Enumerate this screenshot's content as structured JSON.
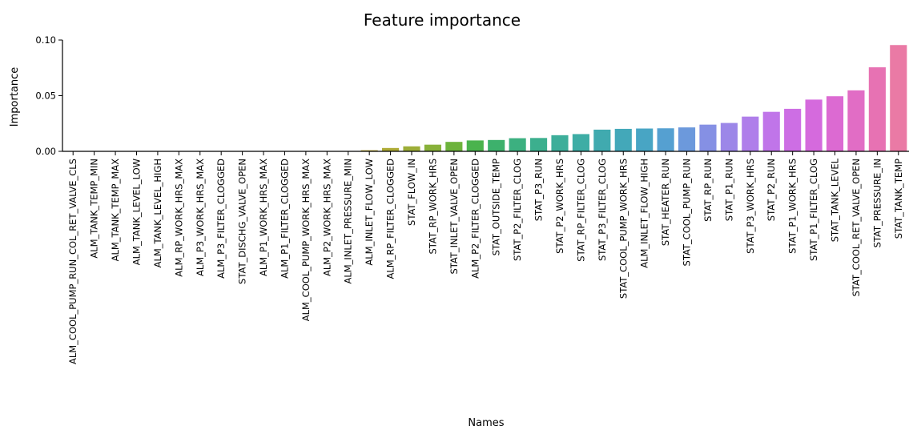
{
  "chart_data": {
    "type": "bar",
    "title": "Feature importance",
    "xlabel": "Names",
    "ylabel": "Importance",
    "ylim": [
      0,
      0.1
    ],
    "yticks": [
      "0.00",
      "0.05",
      "0.10"
    ],
    "ytick_values": [
      0,
      0.05,
      0.1
    ],
    "grid": false,
    "categories": [
      "ALM_COOL_PUMP_RUN_COL_RET_VALVE_CLS",
      "ALM_TANK_TEMP_MIN",
      "ALM_TANK_TEMP_MAX",
      "ALM_TANK_LEVEL_LOW",
      "ALM_TANK_LEVEL_HIGH",
      "ALM_RP_WORK_HRS_MAX",
      "ALM_P3_WORK_HRS_MAX",
      "ALM_P3_FILTER_CLOGGED",
      "STAT_DISCHG_VALVE_OPEN",
      "ALM_P1_WORK_HRS_MAX",
      "ALM_P1_FILTER_CLOGGED",
      "ALM_COOL_PUMP_WORK_HRS_MAX",
      "ALM_P2_WORK_HRS_MAX",
      "ALM_INLET_PRESSURE_MIN",
      "ALM_INLET_FLOW_LOW",
      "ALM_RP_FILTER_CLOGGED",
      "STAT_FLOW_IN",
      "STAT_RP_WORK_HRS",
      "STAT_INLET_VALVE_OPEN",
      "ALM_P2_FILTER_CLOGGED",
      "STAT_OUTSIDE_TEMP",
      "STAT_P2_FILTER_CLOG",
      "STAT_P3_RUN",
      "STAT_P2_WORK_HRS",
      "STAT_RP_FILTER_CLOG",
      "STAT_P3_FILTER_CLOG",
      "STAT_COOL_PUMP_WORK_HRS",
      "ALM_INLET_FLOW_HIGH",
      "STAT_HEATER_RUN",
      "STAT_COOL_PUMP_RUN",
      "STAT_RP_RUN",
      "STAT_P1_RUN",
      "STAT_P3_WORK_HRS",
      "STAT_P2_RUN",
      "STAT_P1_WORK_HRS",
      "STAT_P1_FILTER_CLOG",
      "STAT_TANK_LEVEL",
      "STAT_COOL_RET_VALVE_OPEN",
      "STAT_PRESSURE_IN",
      "STAT_TANK_TEMP"
    ],
    "values": [
      0,
      0,
      0,
      0,
      0,
      0,
      0,
      0,
      0,
      0,
      0,
      0,
      0,
      0,
      0.001,
      0.003,
      0.0045,
      0.006,
      0.0085,
      0.0098,
      0.0102,
      0.0118,
      0.012,
      0.0145,
      0.0155,
      0.0195,
      0.0202,
      0.0205,
      0.0207,
      0.0215,
      0.024,
      0.0255,
      0.0312,
      0.0355,
      0.0382,
      0.0465,
      0.0495,
      0.0548,
      0.0755,
      0.0955
    ],
    "colors": [
      "#f2808b",
      "#f2808b",
      "#f2818a",
      "#f18287",
      "#f08383",
      "#ef857d",
      "#ed8775",
      "#eb896c",
      "#e88d60",
      "#e59154",
      "#e19546",
      "#dc9a37",
      "#d49f30",
      "#c8a431",
      "#bca833",
      "#aeab36",
      "#9dae38",
      "#88b13a",
      "#6db33c",
      "#4ab34d",
      "#3db16c",
      "#3cb080",
      "#3caf8e",
      "#3dae9a",
      "#3eada5",
      "#40aaaf",
      "#43a8b9",
      "#48a5c4",
      "#55a0d1",
      "#6c99dc",
      "#8590e4",
      "#9c87e8",
      "#af7eea",
      "#c075e9",
      "#cd6ee4",
      "#d56add",
      "#dc6ad2",
      "#e16dc5",
      "#e772b3",
      "#ea7aa5"
    ]
  }
}
